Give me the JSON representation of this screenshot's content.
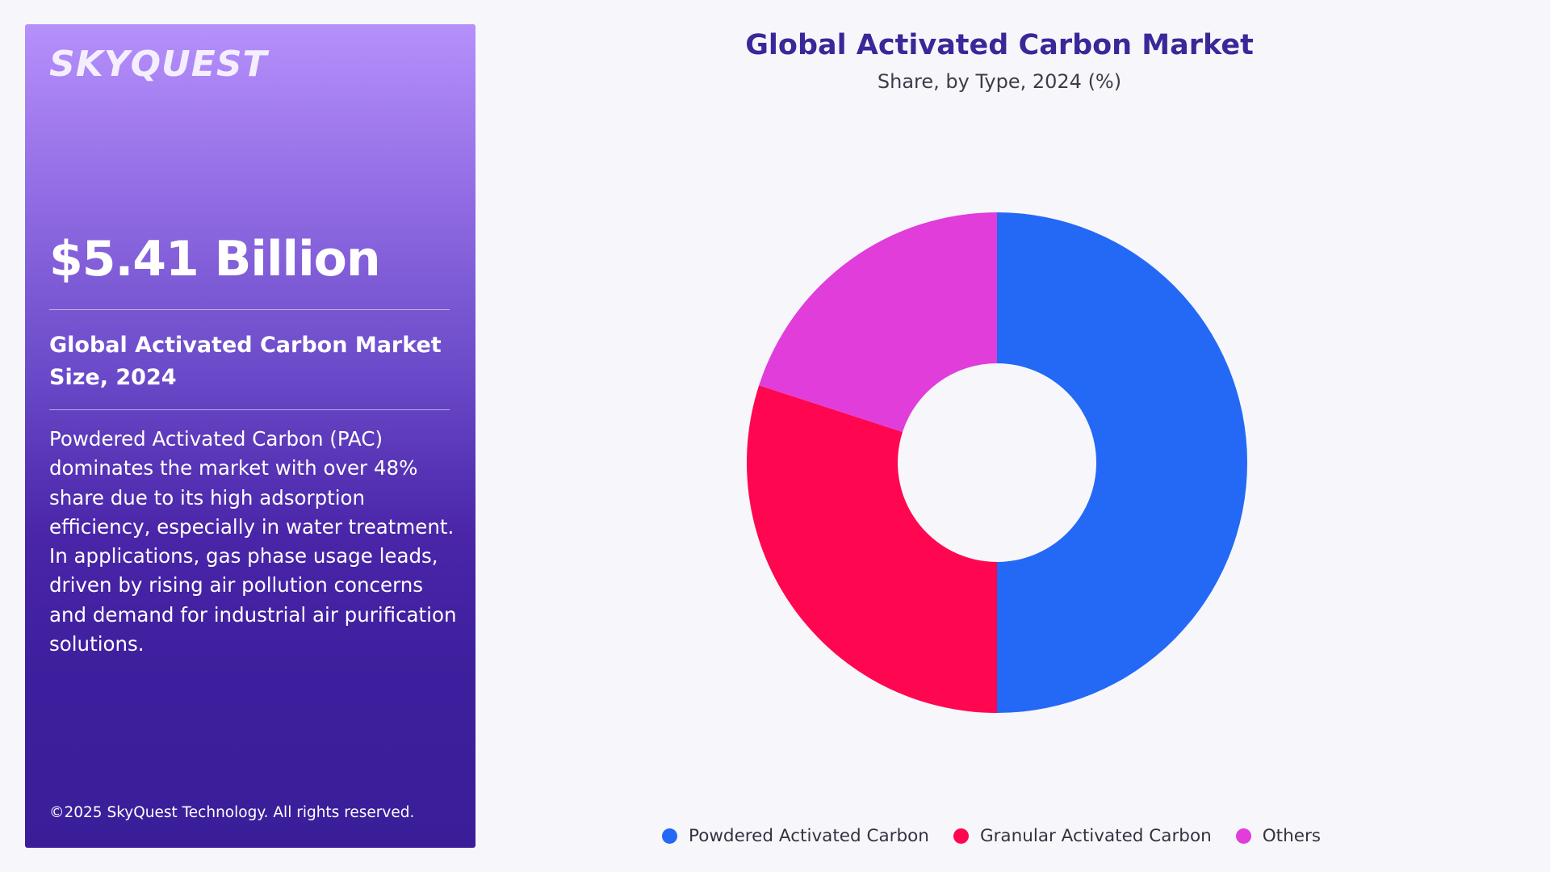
{
  "brand": {
    "logo_text": "SKYQUEST"
  },
  "panel": {
    "value": "$5.41 Billion",
    "market_label": "Global Activated Carbon Market Size, 2024",
    "description": "Powdered Activated Carbon (PAC) dominates the market with over 48% share due to its high adsorption efficiency, especially in water treatment. In applications, gas phase usage leads, driven by rising air pollution concerns and demand for industrial air purification solutions.",
    "copyright": "©2025 SkyQuest Technology. All rights reserved."
  },
  "colors": {
    "panel_top": "#b690fb",
    "panel_bottom": "#3a1e99",
    "title": "#3a2899"
  },
  "chart_data": {
    "type": "pie",
    "title": "Global Activated Carbon Market",
    "subtitle": "Share, by Type, 2024 (%)",
    "donut": true,
    "legend_position": "bottom",
    "categories": [
      "Powdered Activated Carbon",
      "Granular Activated Carbon",
      "Others"
    ],
    "values": [
      50,
      30,
      20
    ],
    "colors": [
      "#2469f5",
      "#ff0650",
      "#e03ddb"
    ]
  }
}
